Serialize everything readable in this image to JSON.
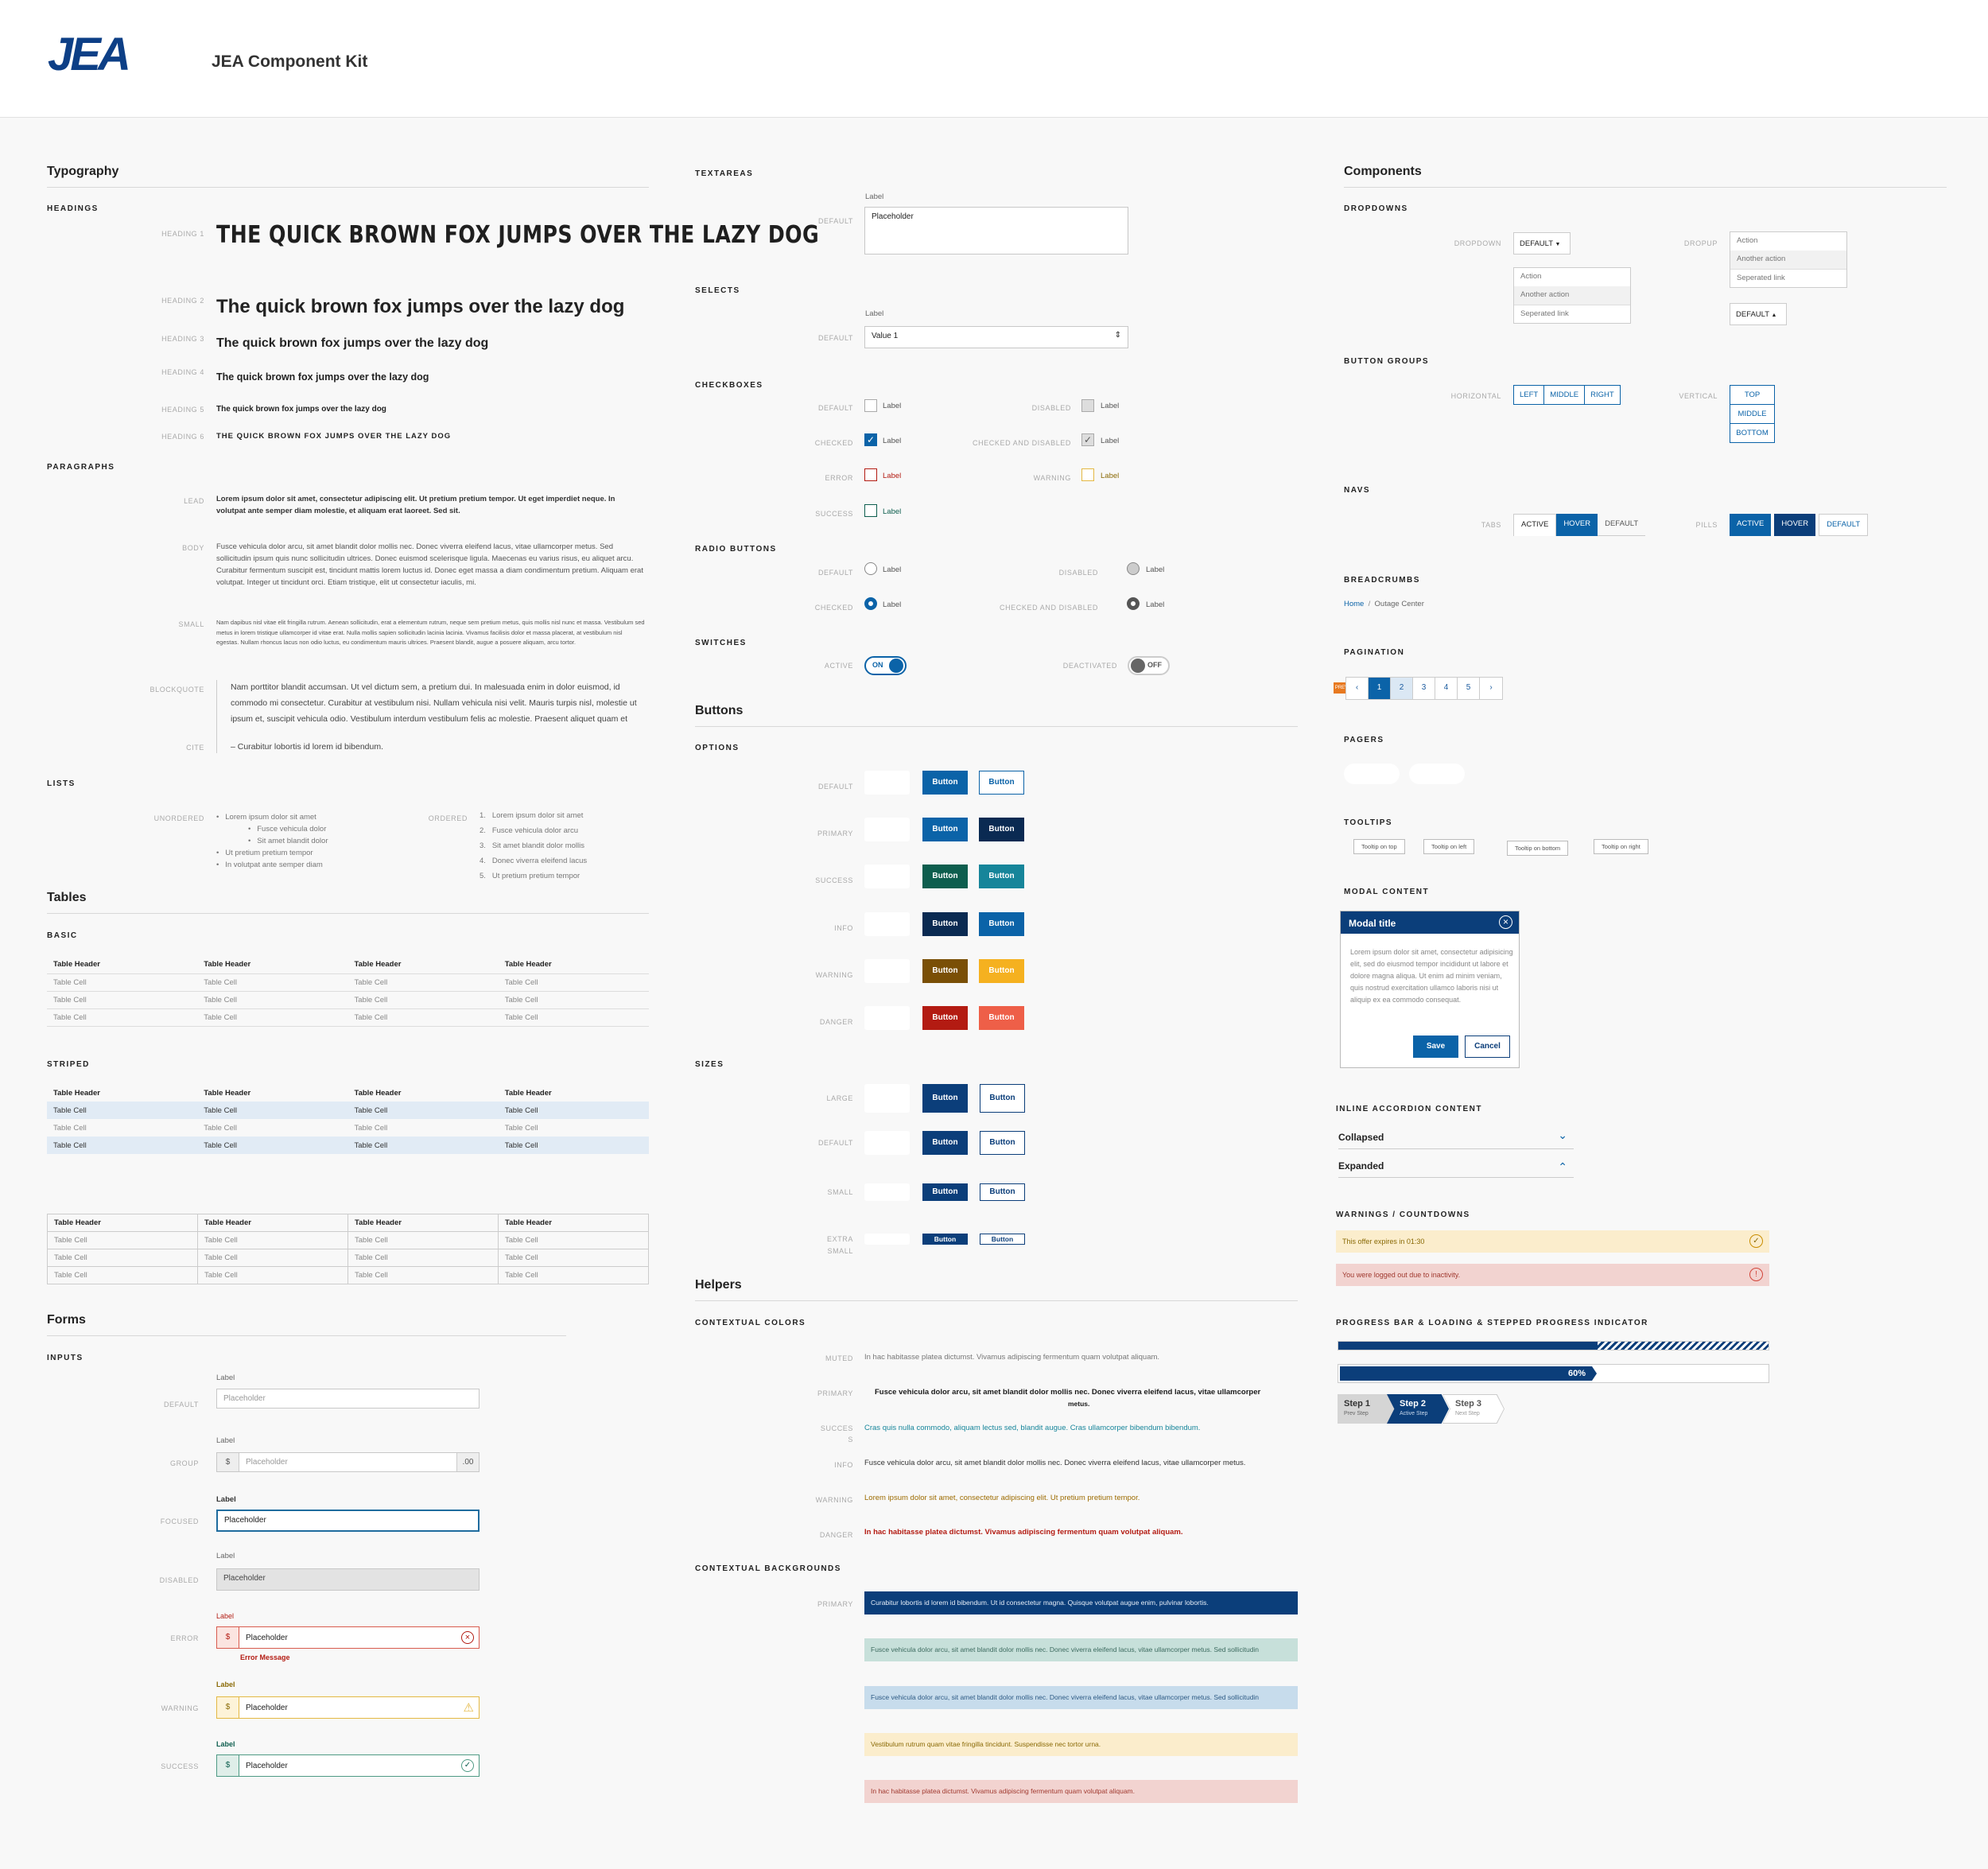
{
  "header": {
    "logo": "JEA",
    "title": "JEA Component Kit"
  },
  "typography": {
    "title": "Typography",
    "headings_label": "HEADINGS",
    "h_labels": [
      "HEADING 1",
      "HEADING 2",
      "HEADING 3",
      "HEADING 4",
      "HEADING 5",
      "HEADING 6"
    ],
    "h1": "THE QUICK BROWN FOX JUMPS OVER THE LAZY DOG",
    "h2": "The quick brown fox jumps over the lazy dog",
    "h3": "The quick brown fox jumps over the lazy dog",
    "h4": "The quick brown fox jumps over the lazy dog",
    "h5": "The quick brown fox jumps over the lazy dog",
    "h6": "THE QUICK BROWN FOX JUMPS OVER THE LAZY DOG",
    "paragraphs_label": "PARAGRAPHS",
    "lead_label": "LEAD",
    "body_label": "BODY",
    "small_label": "SMALL",
    "blockquote_label": "BLOCKQUOTE",
    "cite_label": "CITE",
    "lead": "Lorem ipsum dolor sit amet, consectetur adipiscing elit. Ut pretium pretium tempor. Ut eget imperdiet neque. In volutpat ante semper diam molestie, et aliquam erat laoreet. Sed sit.",
    "body": "Fusce vehicula dolor arcu, sit amet blandit dolor mollis nec. Donec viverra eleifend lacus, vitae ullamcorper metus. Sed sollicitudin ipsum quis nunc sollicitudin ultrices. Donec euismod scelerisque ligula. Maecenas eu varius risus, eu aliquet arcu. Curabitur fermentum suscipit est, tincidunt mattis lorem luctus id. Donec eget massa a diam condimentum pretium. Aliquam erat volutpat. Integer ut tincidunt orci. Etiam tristique, elit ut consectetur iaculis, mi.",
    "small": "Nam dapibus nisl vitae elit fringilla rutrum. Aenean sollicitudin, erat a elementum rutrum, neque sem pretium metus, quis mollis nisl nunc et massa. Vestibulum sed metus in lorem tristique ullamcorper id vitae erat. Nulla mollis sapien sollicitudin lacinia lacinia. Vivamus facilisis dolor et massa placerat, at vestibulum nisl egestas. Nullam rhoncus lacus non odio luctus, eu condimentum mauris ultrices. Praesent blandit, augue a posuere aliquam, arcu tortor.",
    "blockquote": "Nam porttitor blandit accumsan. Ut vel dictum sem, a pretium dui. In malesuada enim in dolor euismod, id commodo mi consectetur. Curabitur at vestibulum nisi. Nullam vehicula nisi velit. Mauris turpis nisl, molestie ut ipsum et, suscipit vehicula odio. Vestibulum interdum vestibulum felis ac molestie. Praesent aliquet quam et",
    "cite": "– Curabitur lobortis id lorem id bibendum.",
    "lists_label": "LISTS",
    "unordered_label": "UNORDERED",
    "ordered_label": "ORDERED",
    "ul": [
      "Lorem ipsum dolor sit amet",
      "Fusce vehicula dolor",
      "Sit amet blandit dolor",
      "Ut pretium pretium tempor",
      "In volutpat ante semper diam"
    ],
    "ol": [
      "Lorem ipsum dolor sit amet",
      "Fusce vehicula dolor arcu",
      "Sit amet blandit dolor mollis",
      "Donec viverra eleifend lacus",
      "Ut pretium pretium tempor"
    ]
  },
  "tables": {
    "title": "Tables",
    "basic_label": "BASIC",
    "striped_label": "STRIPED",
    "h_first": "Table  Header",
    "h": "Table Header",
    "c": "Table Cell"
  },
  "forms": {
    "title": "Forms",
    "inputs_label": "INPUTS",
    "label": "Label",
    "placeholder": "Placeholder",
    "default_label": "DEFAULT",
    "group_label": "GROUP",
    "focused_label": "FOCUSED",
    "disabled_label": "DISABLED",
    "error_label": "ERROR",
    "warning_label": "WARNING",
    "success_label": "SUCCESS",
    "prefix": "$",
    "suffix": ".00",
    "error_msg": "Error Message"
  },
  "mid": {
    "textareas_label": "TEXTAREAS",
    "selects_label": "SELECTS",
    "select_value": "Value 1",
    "checkboxes_label": "CHECKBOXES",
    "radio_label": "RADIO BUTTONS",
    "switches_label": "SWITCHES",
    "default": "DEFAULT",
    "disabled": "DISABLED",
    "checked": "CHECKED",
    "checked_disabled": "CHECKED AND DISABLED",
    "error": "ERROR",
    "warning": "WARNING",
    "success": "SUCCESS",
    "active": "ACTIVE",
    "deactivated": "DEACTIVATED",
    "on": "ON",
    "off": "OFF",
    "label": "Label",
    "placeholder": "Placeholder"
  },
  "buttons": {
    "title": "Buttons",
    "options_label": "OPTIONS",
    "sizes_label": "SIZES",
    "text": "Button",
    "rows": [
      "DEFAULT",
      "PRIMARY",
      "SUCCESS",
      "INFO",
      "WARNING",
      "DANGER"
    ],
    "sizes": [
      "LARGE",
      "DEFAULT",
      "SMALL",
      "EXTRA"
    ],
    "extra2": "SMALL"
  },
  "helpers": {
    "title": "Helpers",
    "colors_label": "CONTEXTUAL COLORS",
    "backgrounds_label": "CONTEXTUAL BACKGROUNDS",
    "muted_l": "MUTED",
    "primary_l": "PRIMARY",
    "success_l": "SUCCES",
    "success_l2": "S",
    "info_l": "INFO",
    "warning_l": "WARNING",
    "danger_l": "DANGER",
    "muted": "In hac habitasse platea dictumst. Vivamus adipiscing fermentum quam volutpat aliquam.",
    "primary": "Fusce vehicula dolor arcu, sit amet blandit dolor mollis nec. Donec viverra eleifend lacus, vitae ullamcorper",
    "primary2": "metus.",
    "success": "Cras quis nulla commodo, aliquam lectus sed, blandit augue. Cras ullamcorper bibendum bibendum.",
    "info": "Fusce vehicula dolor arcu, sit amet blandit dolor mollis nec. Donec viverra eleifend lacus, vitae ullamcorper metus.",
    "warning": "Lorem ipsum dolor sit amet, consectetur adipiscing elit. Ut pretium pretium tempor.",
    "danger": "In hac habitasse platea dictumst. Vivamus adipiscing fermentum quam volutpat aliquam.",
    "bg_primary_l": "PRIMARY",
    "bg1": "Curabitur lobortis id lorem id bibendum. Ut id consectetur magna. Quisque volutpat augue enim, pulvinar lobortis.",
    "bg2": "Fusce vehicula dolor arcu, sit amet blandit dolor mollis nec. Donec viverra eleifend lacus, vitae ullamcorper metus. Sed sollicitudin",
    "bg3": "Fusce vehicula dolor arcu, sit amet blandit dolor mollis nec. Donec viverra eleifend lacus, vitae ullamcorper metus. Sed sollicitudin",
    "bg4": "Vestibulum rutrum quam vitae fringilla tincidunt. Suspendisse nec tortor urna.",
    "bg5": "In hac habitasse platea dictumst. Vivamus adipiscing fermentum quam volutpat aliquam."
  },
  "components": {
    "title": "Components",
    "dropdowns_label": "DROPDOWNS",
    "dropdown_l": "DROPDOWN",
    "dropup_l": "DROPUP",
    "dd_default": "DEFAULT",
    "dd_items": [
      "Action",
      "Another action",
      "Seperated link"
    ],
    "bg_label": "BUTTON GROUPS",
    "horizontal_l": "HORIZONTAL",
    "vertical_l": "VERTICAL",
    "h_items": [
      "LEFT",
      "MIDDLE",
      "RIGHT"
    ],
    "v_items": [
      "TOP",
      "MIDDLE",
      "BOTTOM"
    ],
    "navs_label": "NAVS",
    "tabs_l": "TABS",
    "pills_l": "PILLS",
    "nav_items": [
      "ACTIVE",
      "HOVER",
      "DEFAULT"
    ],
    "breadcrumbs_label": "BREADCRUMBS",
    "crumbs": [
      "Home",
      "/",
      "Outage Center"
    ],
    "pagination_label": "PAGINATION",
    "prev_tag": "PREV",
    "pages": [
      "‹",
      "1",
      "2",
      "3",
      "4",
      "5",
      "›"
    ],
    "pagers_label": "PAGERS",
    "tooltips_label": "TOOLTIPS",
    "tips": [
      "Tooltip on top",
      "Tooltip on left",
      "Tooltip on bottom",
      "Tooltip on right"
    ],
    "modal_label": "MODAL CONTENT",
    "modal_title": "Modal title",
    "modal_body": "Lorem ipsum dolor sit amet, consectetur adipisicing elit, sed do eiusmod tempor incididunt ut labore et dolore magna aliqua. Ut enim ad minim veniam, quis nostrud exercitation ullamco laboris nisi ut aliquip ex ea commodo consequat.",
    "save": "Save",
    "cancel": "Cancel",
    "accordion_label": "INLINE ACCORDION CONTENT",
    "collapsed": "Collapsed",
    "expanded": "Expanded",
    "warnings_label": "WARNINGS / COUNTDOWNS",
    "warn1": "This offer expires in 01:30",
    "warn2": "You were logged out due to inactivity.",
    "progress_label": "PROGRESS BAR & LOADING & STEPPED PROGRESS INDICATOR",
    "progress": 0.6,
    "progress_text": "60%",
    "steps": [
      {
        "t": "Step 1",
        "s": "Prev Step"
      },
      {
        "t": "Step 2",
        "s": "Active Step"
      },
      {
        "t": "Step 3",
        "s": "Next Step"
      }
    ]
  },
  "colors": {
    "blue": "#0b63a8",
    "navy": "#0b3e7a",
    "dark": "#0a2a52",
    "success": "#0d5e4e",
    "teal": "#16859a",
    "warn": "#7a4f06",
    "amber": "#f5b120",
    "danger": "#b31b12",
    "coral": "#ee5f48"
  }
}
